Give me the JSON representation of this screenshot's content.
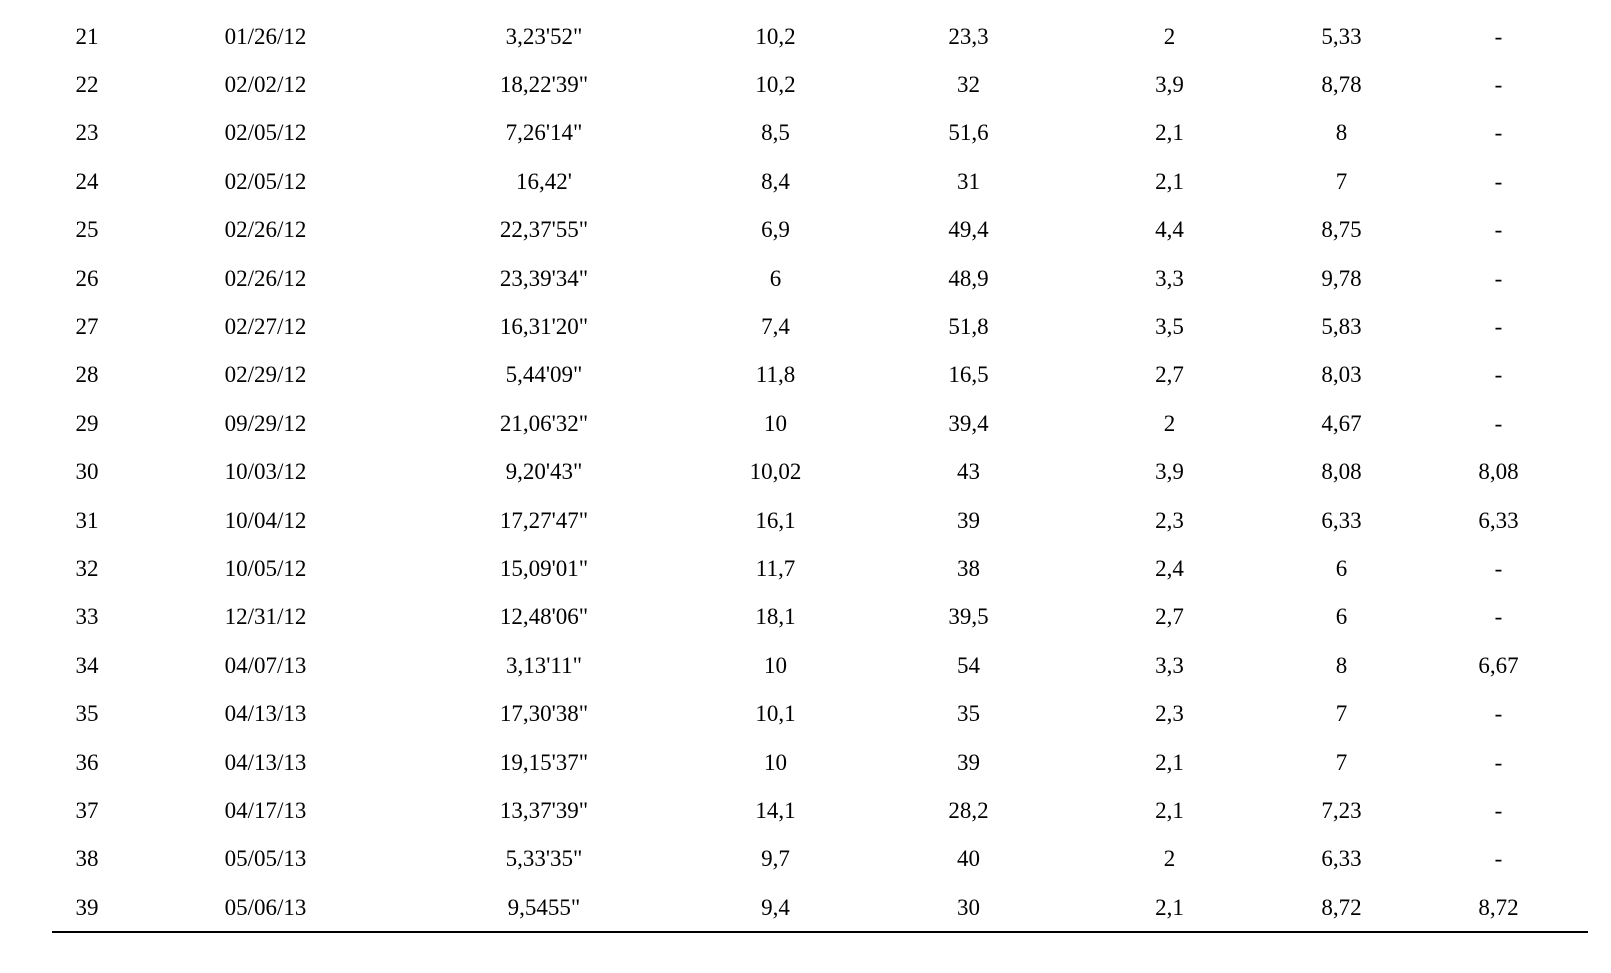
{
  "table": {
    "rows": [
      [
        "21",
        "01/26/12",
        "3,23'52\"",
        "10,2",
        "23,3",
        "2",
        "5,33",
        "-"
      ],
      [
        "22",
        "02/02/12",
        "18,22'39\"",
        "10,2",
        "32",
        "3,9",
        "8,78",
        "-"
      ],
      [
        "23",
        "02/05/12",
        "7,26'14\"",
        "8,5",
        "51,6",
        "2,1",
        "8",
        "-"
      ],
      [
        "24",
        "02/05/12",
        "16,42'",
        "8,4",
        "31",
        "2,1",
        "7",
        "-"
      ],
      [
        "25",
        "02/26/12",
        "22,37'55\"",
        "6,9",
        "49,4",
        "4,4",
        "8,75",
        "-"
      ],
      [
        "26",
        "02/26/12",
        "23,39'34\"",
        "6",
        "48,9",
        "3,3",
        "9,78",
        "-"
      ],
      [
        "27",
        "02/27/12",
        "16,31'20\"",
        "7,4",
        "51,8",
        "3,5",
        "5,83",
        "-"
      ],
      [
        "28",
        "02/29/12",
        "5,44'09\"",
        "11,8",
        "16,5",
        "2,7",
        "8,03",
        "-"
      ],
      [
        "29",
        "09/29/12",
        "21,06'32\"",
        "10",
        "39,4",
        "2",
        "4,67",
        "-"
      ],
      [
        "30",
        "10/03/12",
        "9,20'43\"",
        "10,02",
        "43",
        "3,9",
        "8,08",
        "8,08"
      ],
      [
        "31",
        "10/04/12",
        "17,27'47\"",
        "16,1",
        "39",
        "2,3",
        "6,33",
        "6,33"
      ],
      [
        "32",
        "10/05/12",
        "15,09'01\"",
        "11,7",
        "38",
        "2,4",
        "6",
        "-"
      ],
      [
        "33",
        "12/31/12",
        "12,48'06\"",
        "18,1",
        "39,5",
        "2,7",
        "6",
        "-"
      ],
      [
        "34",
        "04/07/13",
        "3,13'11\"",
        "10",
        "54",
        "3,3",
        "8",
        "6,67"
      ],
      [
        "35",
        "04/13/13",
        "17,30'38\"",
        "10,1",
        "35",
        "2,3",
        "7",
        "-"
      ],
      [
        "36",
        "04/13/13",
        "19,15'37\"",
        "10",
        "39",
        "2,1",
        "7",
        "-"
      ],
      [
        "37",
        "04/17/13",
        "13,37'39\"",
        "14,1",
        "28,2",
        "2,1",
        "7,23",
        "-"
      ],
      [
        "38",
        "05/05/13",
        "5,33'35\"",
        "9,7",
        "40",
        "2",
        "6,33",
        "-"
      ],
      [
        "39",
        "05/06/13",
        "9,5455\"",
        "9,4",
        "30",
        "2,1",
        "8,72",
        "8,72"
      ]
    ]
  }
}
